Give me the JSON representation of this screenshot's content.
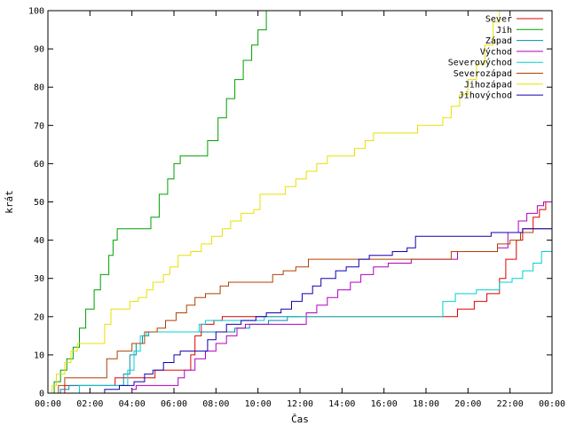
{
  "chart_data": {
    "type": "line",
    "xlabel": "Čas",
    "ylabel": "krát",
    "xlim": [
      0,
      24
    ],
    "ylim": [
      0,
      100
    ],
    "x_ticks": [
      {
        "value": 0,
        "label": "00:00"
      },
      {
        "value": 2,
        "label": "02:00"
      },
      {
        "value": 4,
        "label": "04:00"
      },
      {
        "value": 6,
        "label": "06:00"
      },
      {
        "value": 8,
        "label": "08:00"
      },
      {
        "value": 10,
        "label": "10:00"
      },
      {
        "value": 12,
        "label": "12:00"
      },
      {
        "value": 14,
        "label": "14:00"
      },
      {
        "value": 16,
        "label": "16:00"
      },
      {
        "value": 18,
        "label": "18:00"
      },
      {
        "value": 20,
        "label": "20:00"
      },
      {
        "value": 22,
        "label": "22:00"
      },
      {
        "value": 24,
        "label": "00:00"
      }
    ],
    "y_ticks": [
      {
        "value": 0,
        "label": "0"
      },
      {
        "value": 10,
        "label": "10"
      },
      {
        "value": 20,
        "label": "20"
      },
      {
        "value": 30,
        "label": "30"
      },
      {
        "value": 40,
        "label": "40"
      },
      {
        "value": 50,
        "label": "50"
      },
      {
        "value": 60,
        "label": "60"
      },
      {
        "value": 70,
        "label": "70"
      },
      {
        "value": 80,
        "label": "80"
      },
      {
        "value": 90,
        "label": "90"
      },
      {
        "value": 100,
        "label": "100"
      }
    ],
    "grid": false,
    "legend": "top-right",
    "series": [
      {
        "name": "Sever",
        "color": "#e00000",
        "points": [
          [
            0.7,
            0
          ],
          [
            0.8,
            2
          ],
          [
            2.8,
            2
          ],
          [
            3.2,
            4
          ],
          [
            4.8,
            4
          ],
          [
            5.1,
            6
          ],
          [
            6.4,
            6
          ],
          [
            6.8,
            10
          ],
          [
            7.0,
            15
          ],
          [
            7.3,
            18
          ],
          [
            7.9,
            19
          ],
          [
            8.3,
            20
          ],
          [
            19.3,
            20
          ],
          [
            19.5,
            22
          ],
          [
            20.3,
            24
          ],
          [
            20.9,
            26
          ],
          [
            21.5,
            30
          ],
          [
            21.8,
            35
          ],
          [
            22.3,
            40
          ],
          [
            22.6,
            43
          ],
          [
            23.1,
            46
          ],
          [
            23.4,
            48
          ],
          [
            23.7,
            50
          ],
          [
            24.0,
            55
          ]
        ]
      },
      {
        "name": "Jih",
        "color": "#00a000",
        "points": [
          [
            0.2,
            0
          ],
          [
            0.3,
            3
          ],
          [
            0.6,
            6
          ],
          [
            0.9,
            9
          ],
          [
            1.2,
            12
          ],
          [
            1.5,
            17
          ],
          [
            1.8,
            22
          ],
          [
            2.2,
            27
          ],
          [
            2.5,
            31
          ],
          [
            2.9,
            36
          ],
          [
            3.1,
            40
          ],
          [
            3.3,
            43
          ],
          [
            4.5,
            43
          ],
          [
            4.9,
            46
          ],
          [
            5.3,
            52
          ],
          [
            5.7,
            56
          ],
          [
            6.0,
            60
          ],
          [
            6.3,
            62
          ],
          [
            7.2,
            62
          ],
          [
            7.6,
            66
          ],
          [
            8.1,
            72
          ],
          [
            8.5,
            77
          ],
          [
            8.9,
            82
          ],
          [
            9.3,
            87
          ],
          [
            9.7,
            91
          ],
          [
            10.0,
            95
          ],
          [
            10.4,
            100
          ]
        ]
      },
      {
        "name": "Západ",
        "color": "#0090b0",
        "points": [
          [
            0.5,
            0
          ],
          [
            0.6,
            1
          ],
          [
            1.0,
            2
          ],
          [
            3.4,
            2
          ],
          [
            3.6,
            5
          ],
          [
            3.9,
            10
          ],
          [
            4.2,
            13
          ],
          [
            4.5,
            15
          ],
          [
            4.8,
            16
          ],
          [
            8.5,
            16
          ],
          [
            8.9,
            17
          ],
          [
            9.6,
            18
          ],
          [
            10.5,
            19
          ],
          [
            11.4,
            20
          ],
          [
            12.0,
            20
          ]
        ]
      },
      {
        "name": "Východ",
        "color": "#b000c0",
        "points": [
          [
            3.8,
            0
          ],
          [
            4.0,
            1
          ],
          [
            4.2,
            2
          ],
          [
            5.7,
            2
          ],
          [
            6.2,
            4
          ],
          [
            6.5,
            6
          ],
          [
            7.0,
            9
          ],
          [
            7.5,
            11
          ],
          [
            8.0,
            13
          ],
          [
            8.5,
            15
          ],
          [
            9.0,
            17
          ],
          [
            9.4,
            18
          ],
          [
            12.1,
            18
          ],
          [
            12.3,
            21
          ],
          [
            12.8,
            23
          ],
          [
            13.3,
            25
          ],
          [
            13.8,
            27
          ],
          [
            14.4,
            29
          ],
          [
            14.9,
            31
          ],
          [
            15.5,
            33
          ],
          [
            16.2,
            34
          ],
          [
            17.3,
            35
          ],
          [
            18.6,
            35
          ],
          [
            19.5,
            37
          ],
          [
            20.8,
            37
          ],
          [
            21.4,
            38
          ],
          [
            21.9,
            42
          ],
          [
            22.4,
            45
          ],
          [
            22.8,
            47
          ],
          [
            23.3,
            49
          ],
          [
            23.6,
            50
          ],
          [
            24.0,
            50
          ]
        ]
      },
      {
        "name": "Severovýchod",
        "color": "#00d0d0",
        "points": [
          [
            1.3,
            0
          ],
          [
            1.5,
            2
          ],
          [
            3.6,
            2
          ],
          [
            3.8,
            6
          ],
          [
            4.1,
            11
          ],
          [
            4.4,
            15
          ],
          [
            4.7,
            16
          ],
          [
            7.2,
            18
          ],
          [
            7.5,
            19
          ],
          [
            10.1,
            19
          ],
          [
            10.3,
            20
          ],
          [
            16.8,
            20
          ],
          [
            18.2,
            20
          ],
          [
            18.8,
            24
          ],
          [
            19.4,
            26
          ],
          [
            20.4,
            27
          ],
          [
            21.5,
            29
          ],
          [
            22.1,
            30
          ],
          [
            22.6,
            32
          ],
          [
            23.1,
            34
          ],
          [
            23.5,
            37
          ],
          [
            24.0,
            38
          ]
        ]
      },
      {
        "name": "Severozápad",
        "color": "#b04000",
        "points": [
          [
            0.4,
            0
          ],
          [
            0.5,
            2
          ],
          [
            0.8,
            4
          ],
          [
            2.4,
            4
          ],
          [
            2.8,
            9
          ],
          [
            3.3,
            11
          ],
          [
            4.0,
            13
          ],
          [
            4.6,
            16
          ],
          [
            5.2,
            17
          ],
          [
            5.6,
            19
          ],
          [
            6.1,
            21
          ],
          [
            6.6,
            23
          ],
          [
            7.0,
            25
          ],
          [
            7.5,
            26
          ],
          [
            8.2,
            28
          ],
          [
            8.6,
            29
          ],
          [
            10.4,
            29
          ],
          [
            10.7,
            31
          ],
          [
            11.2,
            32
          ],
          [
            11.8,
            33
          ],
          [
            12.4,
            35
          ],
          [
            18.6,
            35
          ],
          [
            19.2,
            37
          ],
          [
            20.7,
            37
          ],
          [
            21.4,
            39
          ],
          [
            22.0,
            40
          ],
          [
            22.5,
            42
          ],
          [
            23.1,
            43
          ],
          [
            24.0,
            43
          ]
        ]
      },
      {
        "name": "Jihozápad",
        "color": "#e8e000",
        "points": [
          [
            0.1,
            0
          ],
          [
            0.2,
            2
          ],
          [
            0.4,
            5
          ],
          [
            0.8,
            8
          ],
          [
            1.1,
            11
          ],
          [
            1.4,
            13
          ],
          [
            2.4,
            13
          ],
          [
            2.7,
            18
          ],
          [
            3.0,
            22
          ],
          [
            3.6,
            22
          ],
          [
            3.9,
            24
          ],
          [
            4.3,
            25
          ],
          [
            4.7,
            27
          ],
          [
            5.0,
            29
          ],
          [
            5.5,
            31
          ],
          [
            5.8,
            33
          ],
          [
            6.2,
            36
          ],
          [
            6.8,
            37
          ],
          [
            7.3,
            39
          ],
          [
            7.8,
            41
          ],
          [
            8.3,
            43
          ],
          [
            8.7,
            45
          ],
          [
            9.2,
            47
          ],
          [
            9.8,
            48
          ],
          [
            10.1,
            52
          ],
          [
            10.9,
            52
          ],
          [
            11.3,
            54
          ],
          [
            11.8,
            56
          ],
          [
            12.3,
            58
          ],
          [
            12.8,
            60
          ],
          [
            13.3,
            62
          ],
          [
            14.1,
            62
          ],
          [
            14.6,
            64
          ],
          [
            15.1,
            66
          ],
          [
            15.5,
            68
          ],
          [
            17.2,
            68
          ],
          [
            17.6,
            70
          ],
          [
            18.4,
            70
          ],
          [
            18.8,
            72
          ],
          [
            19.2,
            75
          ],
          [
            19.6,
            78
          ],
          [
            20.0,
            82
          ],
          [
            20.4,
            86
          ],
          [
            20.8,
            91
          ],
          [
            21.2,
            97
          ],
          [
            21.5,
            100
          ]
        ]
      },
      {
        "name": "Jihovýchod",
        "color": "#1000b0",
        "points": [
          [
            2.5,
            0
          ],
          [
            2.7,
            1
          ],
          [
            3.1,
            1
          ],
          [
            3.4,
            2
          ],
          [
            4.1,
            3
          ],
          [
            4.6,
            5
          ],
          [
            5.0,
            6
          ],
          [
            5.5,
            8
          ],
          [
            6.0,
            10
          ],
          [
            6.3,
            11
          ],
          [
            7.2,
            11
          ],
          [
            7.6,
            14
          ],
          [
            8.0,
            16
          ],
          [
            8.5,
            18
          ],
          [
            9.2,
            19
          ],
          [
            9.9,
            20
          ],
          [
            10.4,
            21
          ],
          [
            11.1,
            22
          ],
          [
            11.6,
            24
          ],
          [
            12.1,
            26
          ],
          [
            12.6,
            28
          ],
          [
            13.0,
            30
          ],
          [
            13.7,
            32
          ],
          [
            14.2,
            33
          ],
          [
            14.8,
            35
          ],
          [
            15.3,
            36
          ],
          [
            16.4,
            37
          ],
          [
            17.1,
            38
          ],
          [
            17.5,
            41
          ],
          [
            20.7,
            41
          ],
          [
            21.1,
            42
          ],
          [
            22.3,
            42
          ],
          [
            22.6,
            43
          ],
          [
            24.0,
            43
          ]
        ]
      }
    ]
  }
}
